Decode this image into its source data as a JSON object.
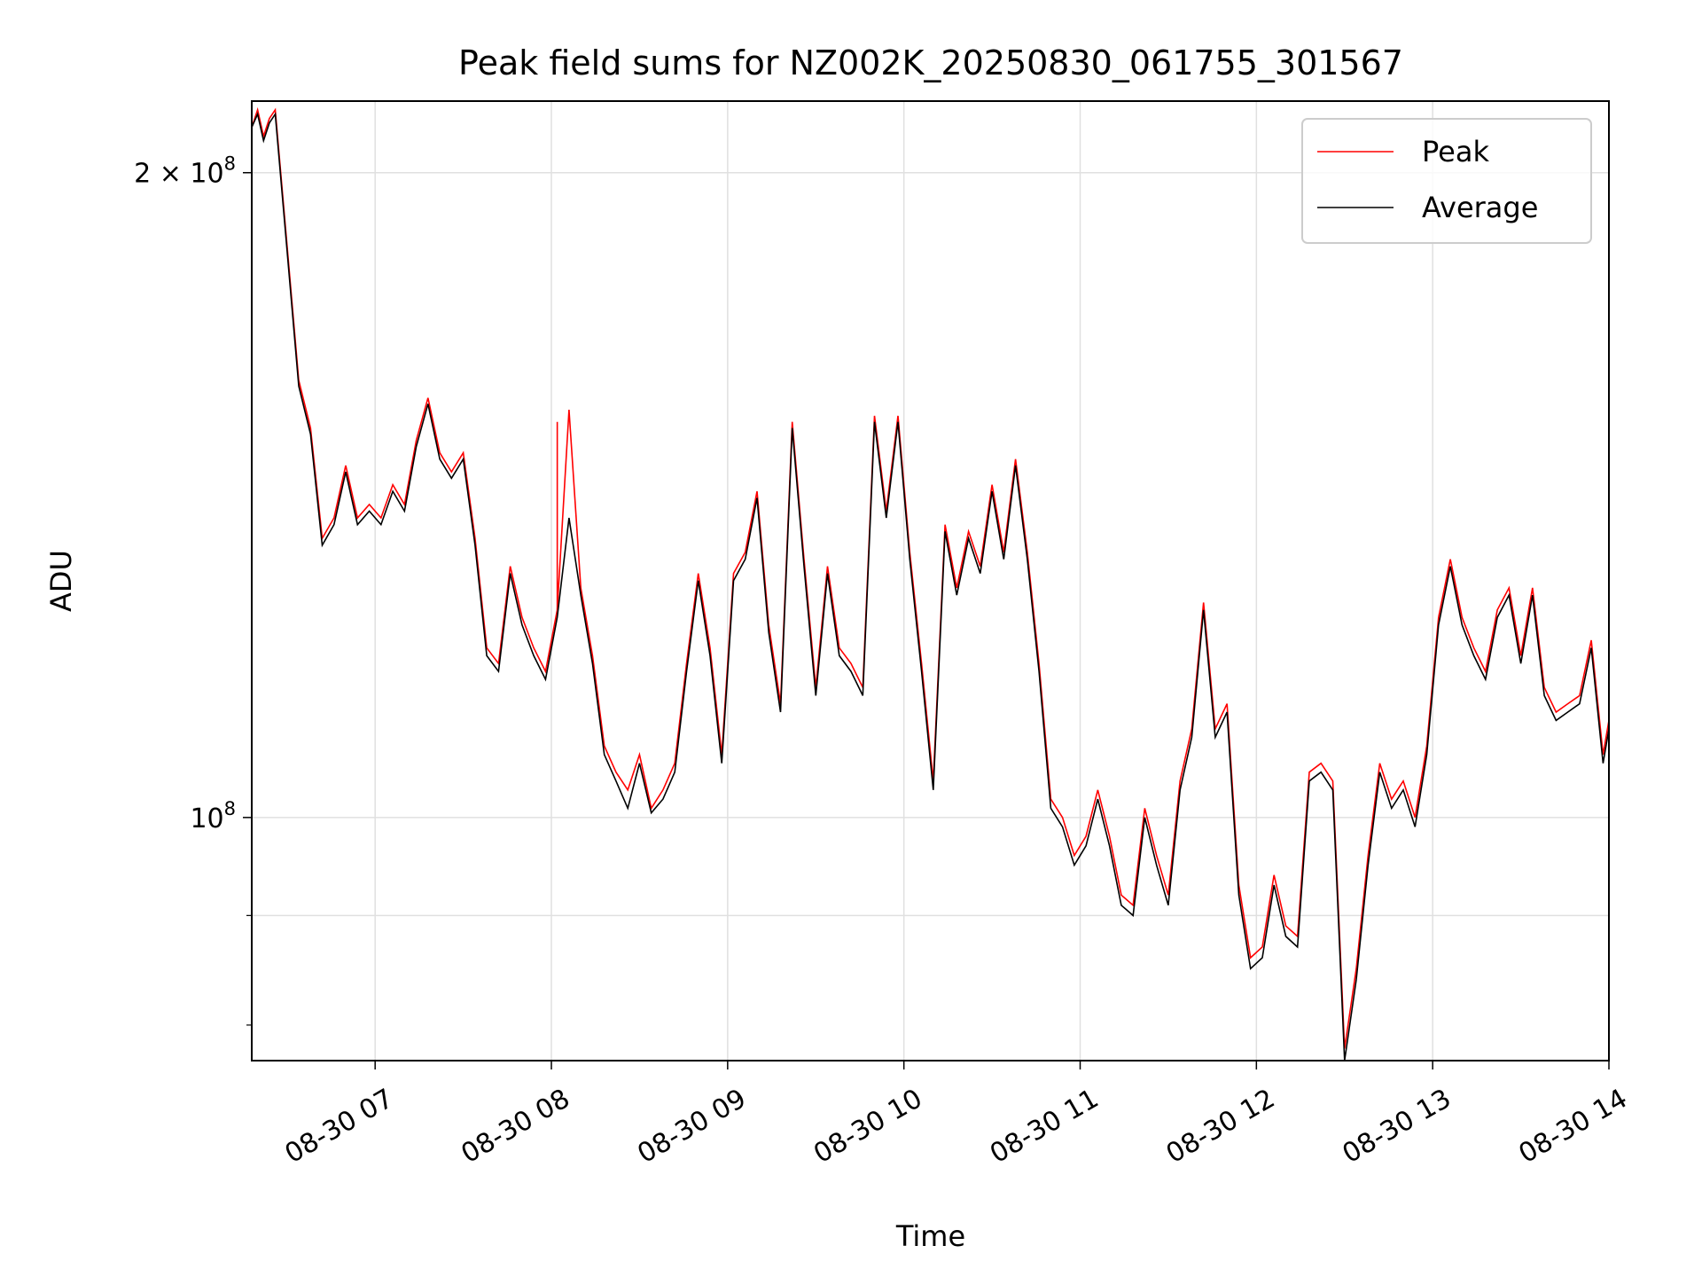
{
  "chart_data": {
    "type": "line",
    "title": "Peak field sums for NZ002K_20250830_061755_301567",
    "xlabel": "Time",
    "ylabel": "ADU",
    "y_scale": "log",
    "xlim": [
      "2025-08-30 06:18",
      "2025-08-30 14:00"
    ],
    "ylim": [
      77000000,
      216000000
    ],
    "x_tick_labels": [
      "08-30 07",
      "08-30 08",
      "08-30 09",
      "08-30 10",
      "08-30 11",
      "08-30 12",
      "08-30 13",
      "08-30 14"
    ],
    "y_tick_labels": [
      "2 × 10^8",
      "10^8"
    ],
    "y_tick_values": [
      200000000,
      100000000
    ],
    "grid": true,
    "legend_position": "upper right",
    "colors": {
      "peak": "#ff0000",
      "average": "#000000",
      "grid": "#e0e0e0"
    },
    "x": [
      "06:18",
      "06:20",
      "06:22",
      "06:24",
      "06:26",
      "06:30",
      "06:34",
      "06:38",
      "06:42",
      "06:46",
      "06:50",
      "06:54",
      "06:58",
      "07:02",
      "07:06",
      "07:10",
      "07:14",
      "07:18",
      "07:22",
      "07:26",
      "07:30",
      "07:34",
      "07:38",
      "07:42",
      "07:46",
      "07:50",
      "07:54",
      "07:58",
      "08:02",
      "08:06",
      "08:10",
      "08:14",
      "08:18",
      "08:22",
      "08:26",
      "08:30",
      "08:34",
      "08:38",
      "08:42",
      "08:46",
      "08:50",
      "08:54",
      "08:58",
      "09:02",
      "09:06",
      "09:10",
      "09:14",
      "09:18",
      "09:22",
      "09:26",
      "09:30",
      "09:34",
      "09:38",
      "09:42",
      "09:46",
      "09:50",
      "09:54",
      "09:58",
      "10:02",
      "10:06",
      "10:10",
      "10:14",
      "10:18",
      "10:22",
      "10:26",
      "10:30",
      "10:34",
      "10:38",
      "10:42",
      "10:46",
      "10:50",
      "10:54",
      "10:58",
      "11:02",
      "11:06",
      "11:10",
      "11:14",
      "11:18",
      "11:22",
      "11:26",
      "11:30",
      "11:34",
      "11:38",
      "11:42",
      "11:46",
      "11:50",
      "11:54",
      "11:58",
      "12:02",
      "12:06",
      "12:10",
      "12:14",
      "12:18",
      "12:22",
      "12:26",
      "12:30",
      "12:34",
      "12:38",
      "12:42",
      "12:46",
      "12:50",
      "12:54",
      "12:58",
      "13:02",
      "13:06",
      "13:10",
      "13:14",
      "13:18",
      "13:22",
      "13:26",
      "13:30",
      "13:34",
      "13:38",
      "13:42",
      "13:46",
      "13:50",
      "13:54",
      "13:58",
      "14:00"
    ],
    "series": [
      {
        "name": "Peak",
        "values": [
          210000000,
          214000000,
          208000000,
          212000000,
          214000000,
          185000000,
          160000000,
          152000000,
          135000000,
          138000000,
          146000000,
          138000000,
          140000000,
          138000000,
          143000000,
          140000000,
          150000000,
          157000000,
          148000000,
          145000000,
          148000000,
          135000000,
          120000000,
          118000000,
          131000000,
          124000000,
          120000000,
          117000000,
          125000000,
          155000000,
          128000000,
          119000000,
          108000000,
          105000000,
          103000000,
          107000000,
          101000000,
          103000000,
          106000000,
          118000000,
          130000000,
          120000000,
          107000000,
          130000000,
          133000000,
          142000000,
          123000000,
          113000000,
          153000000,
          132000000,
          115000000,
          131000000,
          120000000,
          118000000,
          115000000,
          154000000,
          139000000,
          154000000,
          133000000,
          118000000,
          104000000,
          137000000,
          128000000,
          136000000,
          131000000,
          143000000,
          133000000,
          147000000,
          133000000,
          118000000,
          102000000,
          100000000,
          96000000,
          98000000,
          103000000,
          98000000,
          92000000,
          91000000,
          101000000,
          96000000,
          92000000,
          104000000,
          110000000,
          126000000,
          110000000,
          113000000,
          93000000,
          86000000,
          87000000,
          94000000,
          89000000,
          88000000,
          105000000,
          106000000,
          104000000,
          78000000,
          85000000,
          96000000,
          106000000,
          102000000,
          104000000,
          100000000,
          108000000,
          124000000,
          132000000,
          124000000,
          120000000,
          117000000,
          125000000,
          128000000,
          119000000,
          128000000,
          115000000,
          112000000,
          113000000,
          114000000,
          121000000,
          107000000,
          111000000
        ],
        "spikes": [
          {
            "x": "08:02",
            "value": 153000000
          },
          {
            "x": "08:08",
            "value": 139000000
          },
          {
            "x": "10:40",
            "value": 146000000
          }
        ]
      },
      {
        "name": "Average",
        "values": [
          210000000,
          213000000,
          207000000,
          211000000,
          213000000,
          184000000,
          159000000,
          151000000,
          134000000,
          137000000,
          145000000,
          137000000,
          139000000,
          137000000,
          142000000,
          139000000,
          149000000,
          156000000,
          147000000,
          144000000,
          147000000,
          134000000,
          119000000,
          117000000,
          130000000,
          123000000,
          119000000,
          116000000,
          124000000,
          138000000,
          127000000,
          118000000,
          107000000,
          104000000,
          101000000,
          106000000,
          100500000,
          102000000,
          105000000,
          117000000,
          129000000,
          119000000,
          106000000,
          129000000,
          132000000,
          141000000,
          122000000,
          112000000,
          152000000,
          131000000,
          114000000,
          130000000,
          119000000,
          117000000,
          114000000,
          153000000,
          138000000,
          153000000,
          132000000,
          117000000,
          103000000,
          136000000,
          127000000,
          135000000,
          130000000,
          142000000,
          132000000,
          146000000,
          132000000,
          117000000,
          101000000,
          99000000,
          95000000,
          97000000,
          102000000,
          97000000,
          91000000,
          90000000,
          100000000,
          95000000,
          91000000,
          103000000,
          109000000,
          125000000,
          109000000,
          112000000,
          92000000,
          85000000,
          86000000,
          93000000,
          88000000,
          87000000,
          104000000,
          105000000,
          103000000,
          77000000,
          84000000,
          95000000,
          105000000,
          101000000,
          103000000,
          99000000,
          107000000,
          123000000,
          131000000,
          123000000,
          119000000,
          116000000,
          124000000,
          127000000,
          118000000,
          127000000,
          114000000,
          111000000,
          112000000,
          113000000,
          120000000,
          106000000,
          110000000
        ]
      }
    ]
  }
}
